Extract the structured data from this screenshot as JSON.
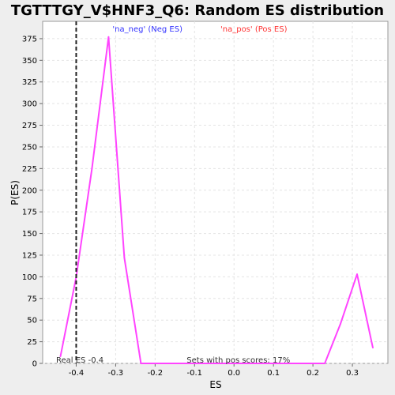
{
  "chart_data": {
    "type": "line",
    "title": "TGTTTGY_V$HNF3_Q6: Random ES distribution",
    "xlabel": "ES",
    "ylabel": "P(ES)",
    "xlim": [
      -0.485,
      0.39
    ],
    "ylim": [
      0,
      395
    ],
    "x_ticks": [
      -0.4,
      -0.3,
      -0.2,
      -0.1,
      0.0,
      0.1,
      0.2,
      0.3
    ],
    "x_tick_labels": [
      "-0.4",
      "-0.3",
      "-0.2",
      "-0.1",
      "0.0",
      "0.1",
      "0.2",
      "0.3"
    ],
    "y_ticks": [
      0,
      25,
      50,
      75,
      100,
      125,
      150,
      175,
      200,
      225,
      250,
      275,
      300,
      325,
      350,
      375
    ],
    "y_tick_labels": [
      "0",
      "25",
      "50",
      "75",
      "100",
      "125",
      "150",
      "175",
      "200",
      "225",
      "250",
      "275",
      "300",
      "325",
      "350",
      "375"
    ],
    "grid": true,
    "legend": [
      {
        "label": "'na_neg' (Neg ES)",
        "color": "#3333ff"
      },
      {
        "label": "'na_pos' (Pos ES)",
        "color": "#ff3333"
      }
    ],
    "series": [
      {
        "color": "#ff44ff",
        "x": [
          -0.44,
          -0.4,
          -0.36,
          -0.318,
          -0.278,
          -0.236,
          -0.196,
          -0.155,
          -0.114,
          -0.073,
          -0.032,
          0.009,
          0.05,
          0.091,
          0.132,
          0.173,
          0.214,
          0.23,
          0.27,
          0.312,
          0.352
        ],
        "y": [
          8,
          100,
          225,
          377,
          122,
          0,
          0,
          0,
          0,
          0,
          0,
          0,
          0,
          0,
          0,
          0,
          0,
          0,
          46,
          103,
          18
        ]
      }
    ],
    "real_es": {
      "value": -0.4,
      "label": "Real ES -0.4",
      "color": "#000000"
    },
    "annotation": "Sets with pos scores: 17%"
  }
}
